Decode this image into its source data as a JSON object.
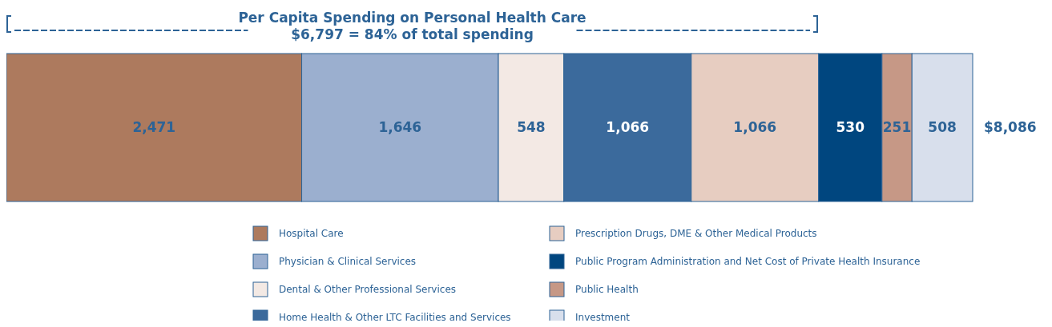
{
  "chart_data": {
    "type": "bar",
    "orientation": "horizontal",
    "stacked": true,
    "title": "Per Capita Spending on Personal Health Care",
    "annotations": [
      "$6,797 = 84% of total spending"
    ],
    "categories": [
      null
    ],
    "series": [
      {
        "name": "Hospital Care",
        "color": "#ad7a5e",
        "values": [
          2471
        ],
        "value_labels": [
          "2,471"
        ]
      },
      {
        "name": "Physician & Clinical Services",
        "color": "#9bafcf",
        "values": [
          1646
        ],
        "value_labels": [
          "1,646"
        ]
      },
      {
        "name": "Dental & Other Professional Services",
        "color": "#f3e9e4",
        "values": [
          548
        ],
        "value_labels": [
          "548"
        ]
      },
      {
        "name": "Home Health & Other LTC Facilities and Services",
        "color": "#3b6a9c",
        "values": [
          1066
        ],
        "value_labels": [
          "1,066"
        ]
      },
      {
        "name": "Prescription Drugs, DME & Other Medical Products",
        "color": "#e7cdc1",
        "values": [
          1066
        ],
        "value_labels": [
          "1,066"
        ]
      },
      {
        "name": "Public Program Administration and Net Cost of Private Health Insurance",
        "color": "#00467f",
        "values": [
          530
        ],
        "value_labels": [
          "530"
        ]
      },
      {
        "name": "Public Health",
        "color": "#c69886",
        "values": [
          251
        ],
        "value_labels": [
          "251"
        ]
      },
      {
        "name": "Investment",
        "color": "#d8dfec",
        "values": [
          508
        ],
        "value_labels": [
          "508"
        ]
      }
    ],
    "totals": [
      "$8,086"
    ],
    "xlim": [
      0,
      8086
    ],
    "legend": "bottom"
  }
}
